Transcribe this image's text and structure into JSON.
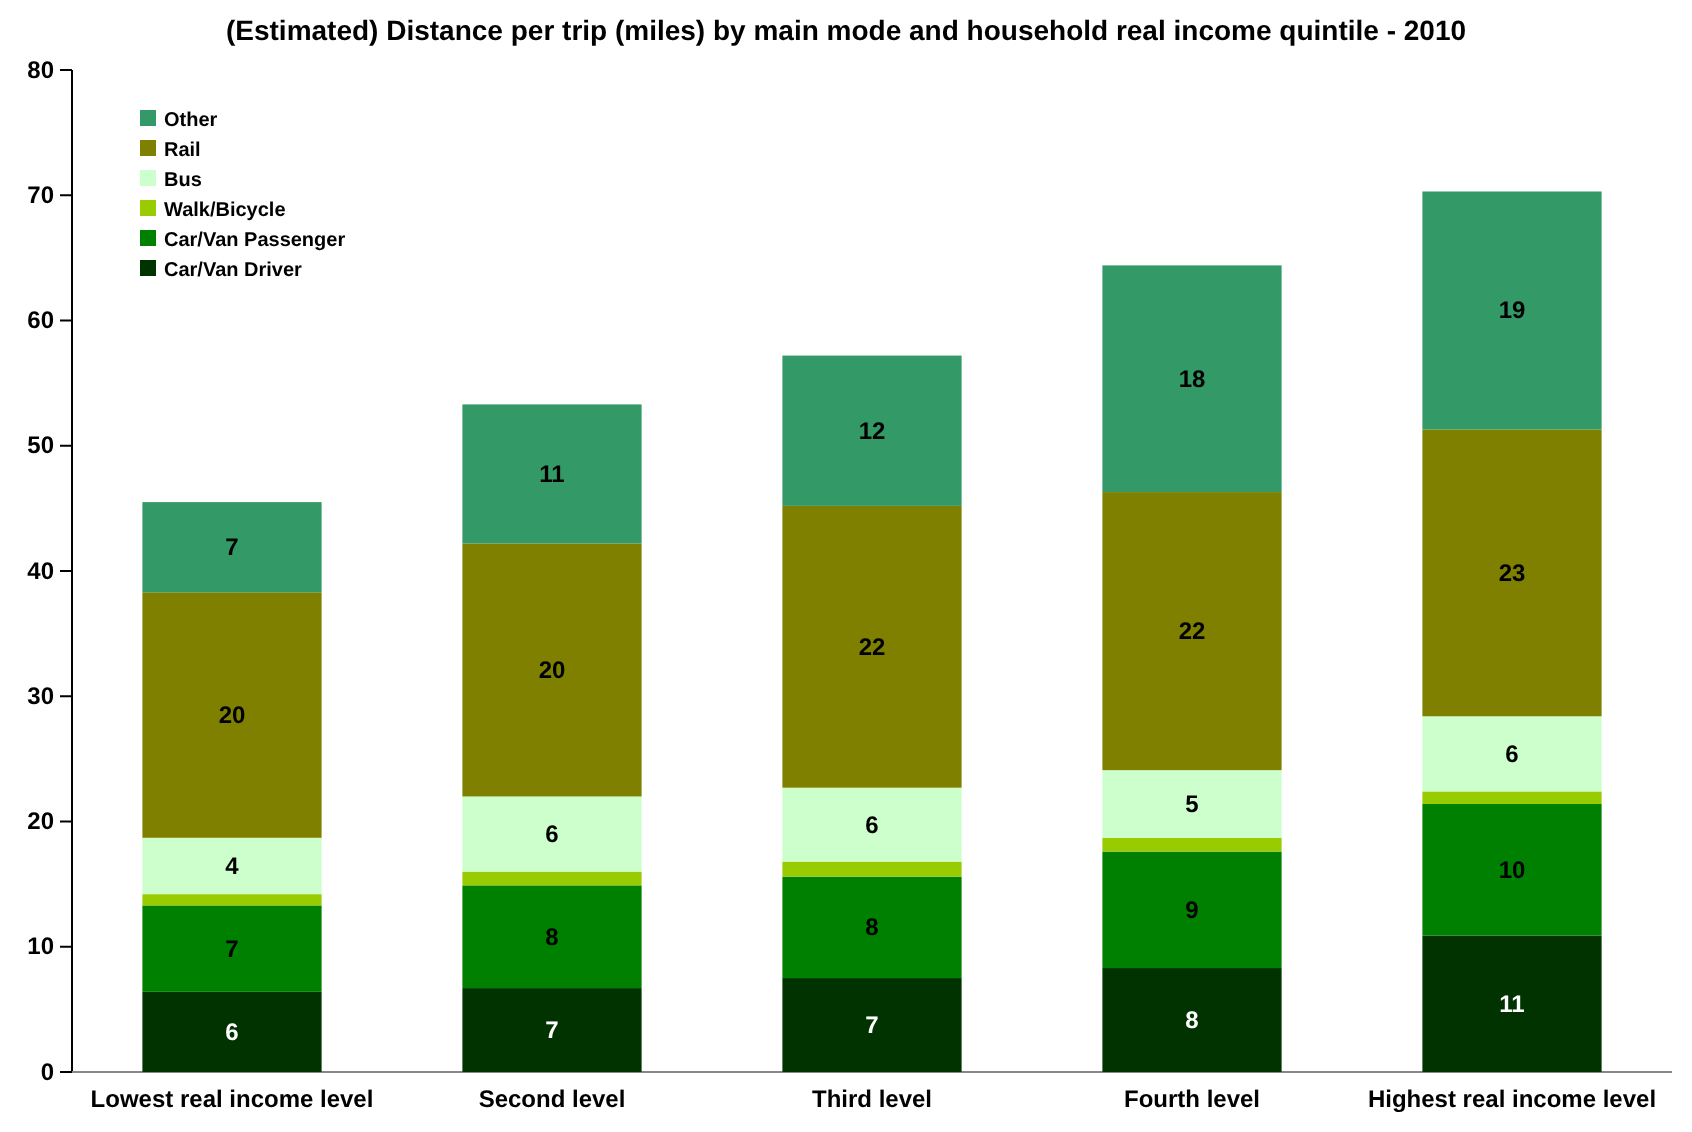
{
  "chart_data": {
    "type": "bar",
    "stacked": true,
    "title": "(Estimated) Distance per trip (miles) by main mode and household real income quintile - 2010",
    "categories": [
      "Lowest real income level",
      "Second level",
      "Third level",
      "Fourth level",
      "Highest real income level"
    ],
    "series": [
      {
        "name": "Car/Van Driver",
        "color": "#003300",
        "values": [
          6.4,
          6.7,
          7.5,
          8.3,
          10.9
        ],
        "value_labels": [
          "6",
          "7",
          "7",
          "8",
          "11"
        ]
      },
      {
        "name": "Car/Van Passenger",
        "color": "#008000",
        "values": [
          6.9,
          8.2,
          8.1,
          9.3,
          10.5
        ],
        "value_labels": [
          "7",
          "8",
          "8",
          "9",
          "10"
        ]
      },
      {
        "name": "Walk/Bicycle",
        "color": "#99cc00",
        "values": [
          0.9,
          1.1,
          1.2,
          1.1,
          1.0
        ],
        "value_labels": [
          null,
          null,
          null,
          null,
          null
        ]
      },
      {
        "name": "Bus",
        "color": "#ccffcc",
        "values": [
          4.5,
          6.0,
          5.9,
          5.4,
          6.0
        ],
        "value_labels": [
          "4",
          "6",
          "6",
          "5",
          "6"
        ]
      },
      {
        "name": "Rail",
        "color": "#808000",
        "values": [
          19.6,
          20.2,
          22.5,
          22.2,
          22.9
        ],
        "value_labels": [
          "20",
          "20",
          "22",
          "22",
          "23"
        ]
      },
      {
        "name": "Other",
        "color": "#339966",
        "values": [
          7.2,
          11.1,
          12.0,
          18.1,
          19.0
        ],
        "value_labels": [
          "7",
          "11",
          "12",
          "18",
          "19"
        ]
      }
    ],
    "ylim": [
      0,
      80
    ],
    "yticks": [
      0,
      10,
      20,
      30,
      40,
      50,
      60,
      70,
      80
    ],
    "grid": false,
    "legend": "top left"
  }
}
